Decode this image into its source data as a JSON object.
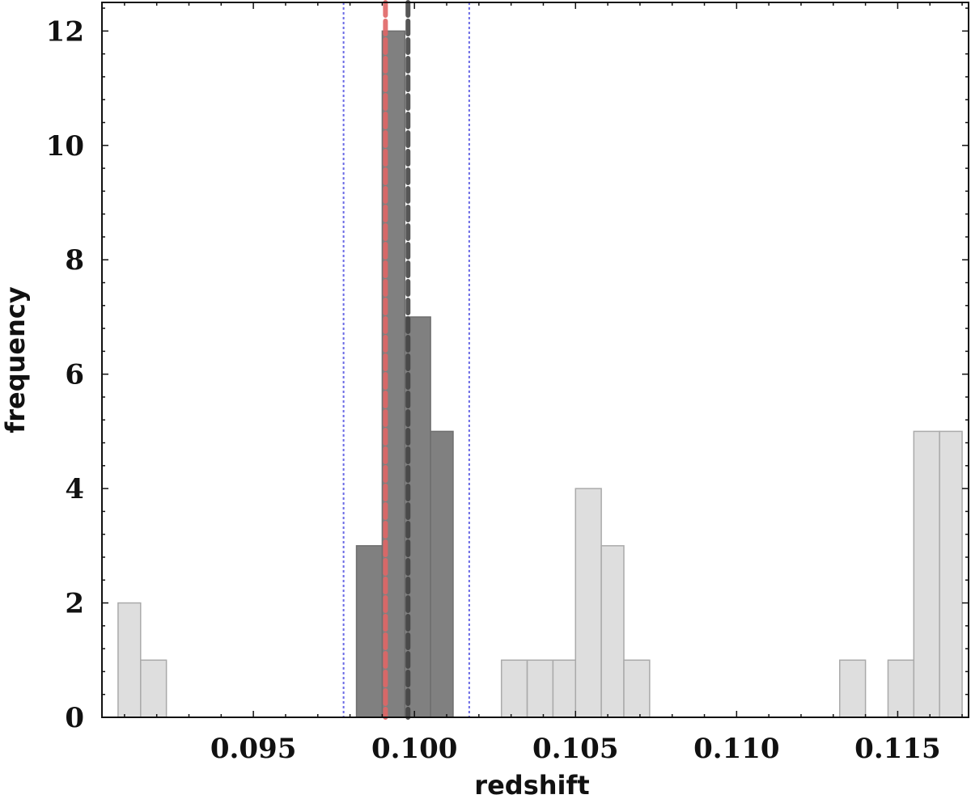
{
  "chart_data": {
    "type": "bar",
    "title": "",
    "xlabel": "redshift",
    "ylabel": "frequency",
    "xlim": [
      0.0903,
      0.1172
    ],
    "ylim": [
      0,
      12.5
    ],
    "grid": false,
    "x_ticks": [
      0.095,
      0.1,
      0.105,
      0.11,
      0.115
    ],
    "x_tick_labels": [
      "0.095",
      "0.100",
      "0.105",
      "0.110",
      "0.115"
    ],
    "y_ticks": [
      0,
      2,
      4,
      6,
      8,
      10,
      12
    ],
    "y_tick_labels": [
      "0",
      "2",
      "4",
      "6",
      "8",
      "10",
      "12"
    ],
    "series": [
      {
        "role": "outside-window",
        "color": "#dedede",
        "edge_color": "#aaaaaa",
        "bins": [
          {
            "x0": 0.0908,
            "x1": 0.0915,
            "count": 2
          },
          {
            "x0": 0.0915,
            "x1": 0.0923,
            "count": 1
          },
          {
            "x0": 0.1027,
            "x1": 0.1035,
            "count": 1
          },
          {
            "x0": 0.1035,
            "x1": 0.1043,
            "count": 1
          },
          {
            "x0": 0.1043,
            "x1": 0.105,
            "count": 1
          },
          {
            "x0": 0.105,
            "x1": 0.1058,
            "count": 4
          },
          {
            "x0": 0.1058,
            "x1": 0.1065,
            "count": 3
          },
          {
            "x0": 0.1065,
            "x1": 0.1073,
            "count": 1
          },
          {
            "x0": 0.1132,
            "x1": 0.114,
            "count": 1
          },
          {
            "x0": 0.1147,
            "x1": 0.1155,
            "count": 1
          },
          {
            "x0": 0.1155,
            "x1": 0.1163,
            "count": 5
          },
          {
            "x0": 0.1163,
            "x1": 0.117,
            "count": 5
          }
        ]
      },
      {
        "role": "inside-window",
        "color": "#808080",
        "edge_color": "#6e6e6e",
        "bins": [
          {
            "x0": 0.0982,
            "x1": 0.099,
            "count": 3
          },
          {
            "x0": 0.099,
            "x1": 0.0997,
            "count": 12
          },
          {
            "x0": 0.0997,
            "x1": 0.1005,
            "count": 7
          },
          {
            "x0": 0.1005,
            "x1": 0.1012,
            "count": 5
          }
        ]
      }
    ],
    "reference_lines": [
      {
        "x": 0.0978,
        "style": "dotted",
        "color": "#6a6ae6"
      },
      {
        "x": 0.1017,
        "style": "dotted",
        "color": "#6a6ae6"
      },
      {
        "x": 0.0991,
        "style": "dashed",
        "color": "#e06666"
      },
      {
        "x": 0.0998,
        "style": "dashed",
        "color": "#444444"
      }
    ]
  }
}
